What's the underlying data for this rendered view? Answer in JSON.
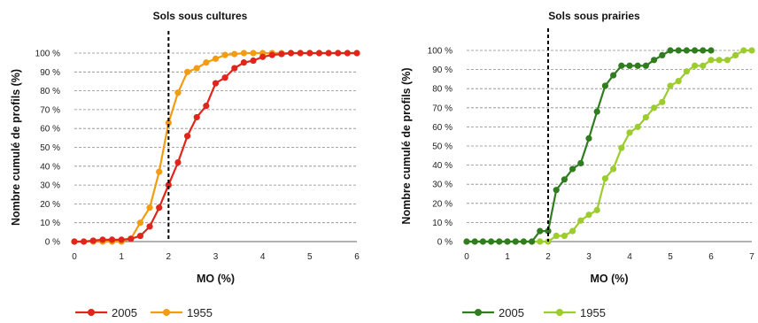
{
  "chart_data": [
    {
      "type": "line",
      "title": "Sols sous cultures",
      "xlabel": "MO (%)",
      "ylabel": "Nombre cumulé de profils (%)",
      "xlim": [
        0,
        6
      ],
      "ylim": [
        0,
        100
      ],
      "x_ticks": [
        "0",
        "1",
        "2",
        "3",
        "4",
        "5",
        "6"
      ],
      "y_ticks": [
        "0 %",
        "10 %",
        "20 %",
        "30 %",
        "40 %",
        "50 %",
        "60 %",
        "70 %",
        "80 %",
        "90 %",
        "100 %"
      ],
      "grid": "horizontal dashed",
      "reference_line_x": 2,
      "legend_position": "bottom-left",
      "series": [
        {
          "name": "2005",
          "color": "#e0251b",
          "x": [
            0,
            0.2,
            0.4,
            0.6,
            0.8,
            1.0,
            1.2,
            1.4,
            1.6,
            1.8,
            2.0,
            2.2,
            2.4,
            2.6,
            2.8,
            3.0,
            3.2,
            3.4,
            3.6,
            3.8,
            4.0,
            4.2,
            4.4,
            4.6,
            4.8,
            5.0,
            5.2,
            5.4,
            5.6,
            5.8,
            6.0
          ],
          "y": [
            0,
            0,
            0.5,
            1,
            1,
            1,
            1.5,
            3,
            8,
            18,
            30,
            42,
            56,
            66,
            72,
            84,
            87,
            92,
            95,
            96,
            98,
            99,
            99.5,
            100,
            100,
            100,
            100,
            100,
            100,
            100,
            100
          ]
        },
        {
          "name": "1955",
          "color": "#f39c12",
          "x": [
            0,
            0.2,
            0.4,
            0.6,
            0.8,
            1.0,
            1.2,
            1.4,
            1.6,
            1.8,
            2.0,
            2.2,
            2.4,
            2.6,
            2.8,
            3.0,
            3.2,
            3.4,
            3.6,
            3.8,
            4.0,
            4.2,
            4.4,
            4.6,
            4.8,
            5.0,
            5.2,
            5.4,
            5.6,
            5.8,
            6.0
          ],
          "y": [
            0,
            0,
            0,
            0,
            0,
            0,
            1.5,
            10,
            18,
            37,
            63,
            79,
            90,
            92,
            95,
            97,
            99,
            99.5,
            100,
            100,
            100,
            100,
            100,
            100,
            100,
            100,
            100,
            100,
            100,
            100,
            100
          ]
        }
      ]
    },
    {
      "type": "line",
      "title": "Sols sous prairies",
      "xlabel": "MO (%)",
      "ylabel": "Nombre cumulé de profils (%)",
      "xlim": [
        0,
        7
      ],
      "ylim": [
        0,
        100
      ],
      "x_ticks": [
        "0",
        "1",
        "2",
        "3",
        "4",
        "5",
        "6",
        "7"
      ],
      "y_ticks": [
        "0 %",
        "10 %",
        "20 %",
        "30 %",
        "40 %",
        "50 %",
        "60 %",
        "70 %",
        "80 %",
        "90 %",
        "100 %"
      ],
      "grid": "horizontal dashed",
      "reference_line_x": 2,
      "legend_position": "bottom-left",
      "series": [
        {
          "name": "2005",
          "color": "#2f7d1f",
          "x": [
            0,
            0.2,
            0.4,
            0.6,
            0.8,
            1.0,
            1.2,
            1.4,
            1.6,
            1.8,
            2.0,
            2.2,
            2.4,
            2.6,
            2.8,
            3.0,
            3.2,
            3.4,
            3.6,
            3.8,
            4.0,
            4.2,
            4.4,
            4.6,
            4.8,
            5.0,
            5.2,
            5.4,
            5.6,
            5.8,
            6.0
          ],
          "y": [
            0,
            0,
            0,
            0,
            0,
            0,
            0,
            0,
            0,
            5.5,
            5.5,
            27,
            32.5,
            38,
            41,
            54,
            68,
            81.5,
            87,
            92,
            92,
            92,
            92,
            95,
            97.5,
            100,
            100,
            100,
            100,
            100,
            100
          ]
        },
        {
          "name": "1955",
          "color": "#9ccc2e",
          "x": [
            0,
            0.2,
            0.4,
            0.6,
            0.8,
            1.0,
            1.2,
            1.4,
            1.6,
            1.8,
            2.0,
            2.2,
            2.4,
            2.6,
            2.8,
            3.0,
            3.2,
            3.4,
            3.6,
            3.8,
            4.0,
            4.2,
            4.4,
            4.6,
            4.8,
            5.0,
            5.2,
            5.4,
            5.6,
            5.8,
            6.0,
            6.2,
            6.4,
            6.6,
            6.8,
            7.0
          ],
          "y": [
            0,
            0,
            0,
            0,
            0,
            0,
            0,
            0,
            0,
            0,
            0,
            3,
            3,
            5.5,
            11,
            14,
            16.5,
            33,
            38,
            49,
            57,
            60,
            65,
            70,
            73,
            81.5,
            84,
            89,
            92,
            92,
            95,
            95,
            95,
            97.5,
            100,
            100
          ]
        }
      ]
    }
  ]
}
